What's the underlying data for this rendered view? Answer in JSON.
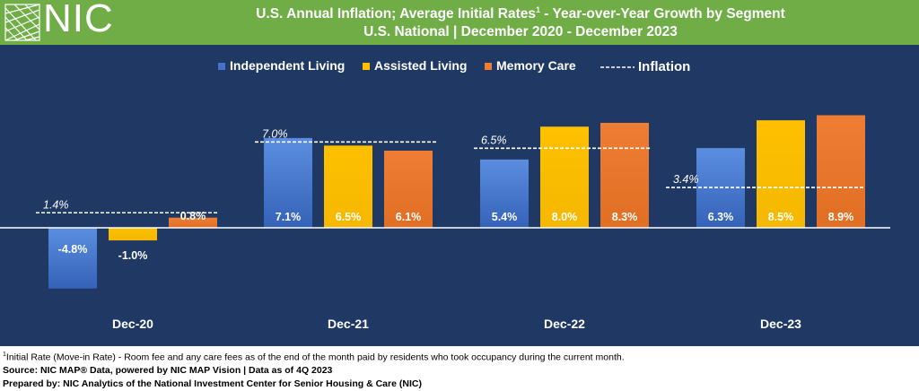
{
  "header": {
    "logo_text": "NIC",
    "title_line1": "U.S. Annual Inflation; Average Initial Rates",
    "title_sup": "1",
    "title_line1_rest": " - Year-over-Year Growth by Segment",
    "title_line2": "U.S. National | December 2020 - December 2023"
  },
  "colors": {
    "header_bg": "#70ad47",
    "panel_bg": "#1f3864",
    "independent_living": "#4472c4",
    "assisted_living": "#ffc000",
    "memory_care": "#ed7d31",
    "inflation": "#ffffff"
  },
  "chart_data": {
    "type": "bar",
    "title": "U.S. Annual Inflation; Average Initial Rates - Year-over-Year Growth by Segment",
    "subtitle": "U.S. National | December 2020 - December 2023",
    "categories": [
      "Dec-20",
      "Dec-21",
      "Dec-22",
      "Dec-23"
    ],
    "series": [
      {
        "name": "Independent Living",
        "values": [
          -4.8,
          7.1,
          5.4,
          6.3
        ],
        "labels": [
          "-4.8%",
          "7.1%",
          "5.4%",
          "6.3%"
        ]
      },
      {
        "name": "Assisted Living",
        "values": [
          -1.0,
          6.5,
          8.0,
          8.5
        ],
        "labels": [
          "-1.0%",
          "6.5%",
          "8.0%",
          "8.5%"
        ]
      },
      {
        "name": "Memory Care",
        "values": [
          0.8,
          6.1,
          8.3,
          8.9
        ],
        "labels": [
          "0.8%",
          "6.1%",
          "8.3%",
          "8.9%"
        ]
      }
    ],
    "inflation": {
      "name": "Inflation",
      "values": [
        1.4,
        7.0,
        6.5,
        3.4
      ],
      "labels": [
        "1.4%",
        "7.0%",
        "6.5%",
        "3.4%"
      ]
    },
    "ylim": [
      -6.0,
      10.0
    ],
    "xlabel": "",
    "ylabel": "",
    "grid": false,
    "legend_position": "top-center"
  },
  "footer": {
    "footnote_sup": "1",
    "footnote": "Initial Rate (Move-in Rate) - Room fee and any care fees as of the end of the month paid by residents who took occupancy during the current month.",
    "source": "Source: NIC MAP® Data, powered by NIC MAP Vision | Data as of 4Q 2023",
    "prepared_by": "Prepared by: NIC Analytics of the National Investment Center for Senior Housing & Care (NIC)"
  }
}
